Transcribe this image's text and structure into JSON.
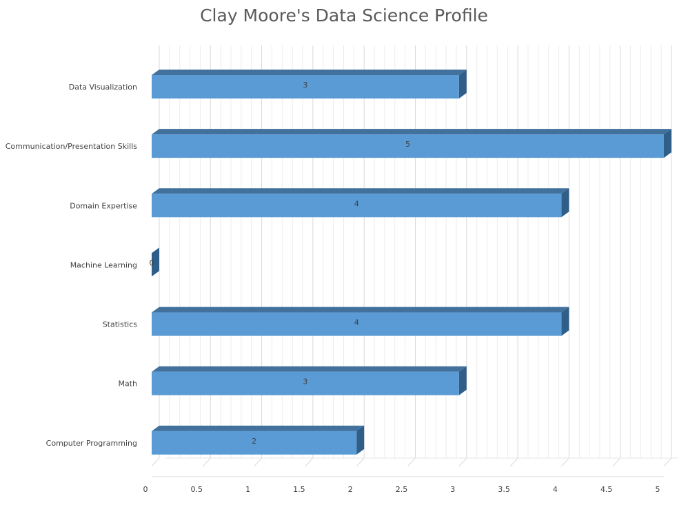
{
  "chart_data": {
    "type": "bar",
    "orientation": "horizontal",
    "style": "3d",
    "title": "Clay Moore's Data Science Profile",
    "xlabel": "",
    "ylabel": "",
    "xlim": [
      0,
      5
    ],
    "xticks": [
      0,
      0.5,
      1,
      1.5,
      2,
      2.5,
      3,
      3.5,
      4,
      4.5,
      5
    ],
    "xtick_labels": [
      "0",
      "0.5",
      "1",
      "1.5",
      "2",
      "2.5",
      "3",
      "3.5",
      "4",
      "4.5",
      "5"
    ],
    "categories": [
      "Computer Programming",
      "Math",
      "Statistics",
      "Machine Learning",
      "Domain Expertise",
      "Communication/Presentation Skills",
      "Data Visualization"
    ],
    "values": [
      2,
      3,
      4,
      0,
      4,
      5,
      3
    ],
    "data_labels": [
      "2",
      "3",
      "4",
      "0",
      "4",
      "5",
      "3"
    ],
    "grid": true,
    "legend": "none",
    "colors": {
      "bar_front": "#5b9bd5",
      "bar_top": "#41719c",
      "bar_side": "#2f5f88",
      "grid": "#d9d9d9",
      "text": "#404040",
      "title": "#595959"
    }
  }
}
